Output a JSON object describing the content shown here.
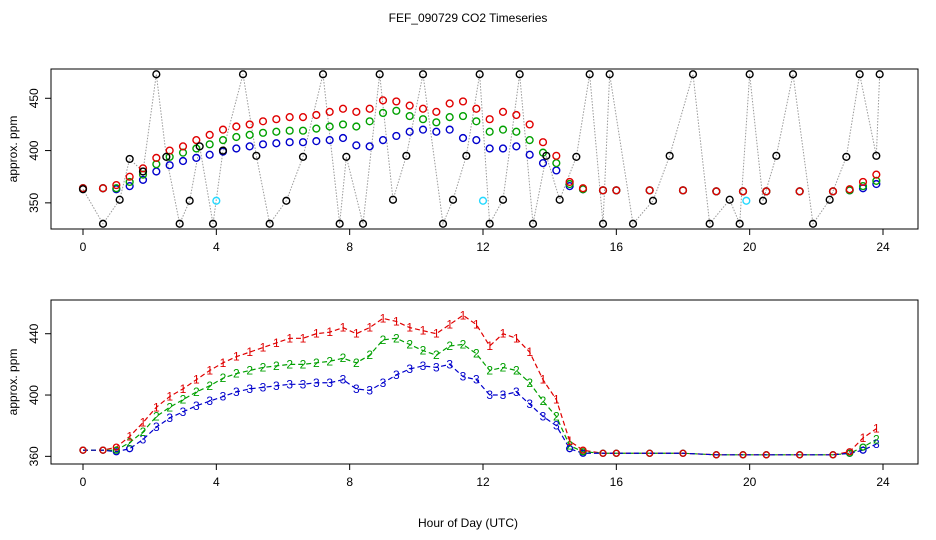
{
  "title": "FEF_090729  CO2 Timeseries",
  "xlabel": "Hour of Day (UTC)",
  "colors": {
    "black": "#000000",
    "red": "#e00000",
    "green": "#00a000",
    "blue": "#0000cc",
    "cyan": "#22d8ff",
    "grey": "#9a9a9a"
  },
  "chart_data": [
    {
      "type": "scatter",
      "title": "FEF_090729  CO2 Timeseries",
      "xlabel": "",
      "ylabel": "approx. ppm",
      "xlim": [
        0,
        24
      ],
      "ylim": [
        325,
        478
      ],
      "xticks": [
        "0",
        "4",
        "8",
        "12",
        "16",
        "20",
        "24"
      ],
      "yticks": [
        "350",
        "400",
        "450"
      ],
      "series": [
        {
          "color": "black",
          "marker": "circle",
          "x": [
            0.0,
            0.6,
            1.1,
            1.4,
            1.8,
            2.2,
            2.5,
            2.9,
            3.2,
            3.5,
            3.9,
            4.2,
            4.8,
            5.2,
            5.6,
            6.1,
            6.6,
            7.2,
            7.7,
            7.9,
            8.4,
            8.9,
            9.3,
            9.7,
            10.2,
            10.8,
            11.1,
            11.5,
            11.9,
            12.2,
            12.6,
            13.1,
            13.5,
            13.9,
            14.3,
            14.8,
            15.2,
            15.6,
            15.8,
            16.5,
            17.1,
            17.6,
            18.3,
            18.8,
            19.4,
            19.7,
            20.0,
            20.4,
            20.8,
            21.3,
            21.9,
            22.4,
            22.9,
            23.3,
            23.8,
            23.9
          ],
          "y": [
            363,
            330,
            353,
            392,
            380,
            473,
            394,
            330,
            352,
            404,
            330,
            400,
            473,
            395,
            330,
            352,
            394,
            473,
            330,
            394,
            330,
            473,
            353,
            395,
            473,
            330,
            353,
            395,
            473,
            330,
            353,
            473,
            330,
            395,
            353,
            394,
            473,
            330,
            473,
            330,
            352,
            395,
            473,
            330,
            353,
            330,
            473,
            352,
            395,
            473,
            330,
            353,
            394,
            473,
            395,
            473
          ]
        },
        {
          "color": "red",
          "marker": "circle",
          "x": [
            0.0,
            0.6,
            1.0,
            1.4,
            1.8,
            2.2,
            2.6,
            3.0,
            3.4,
            3.8,
            4.2,
            4.6,
            5.0,
            5.4,
            5.8,
            6.2,
            6.6,
            7.0,
            7.4,
            7.8,
            8.2,
            8.6,
            9.0,
            9.4,
            9.8,
            10.2,
            10.6,
            11.0,
            11.4,
            11.8,
            12.2,
            12.6,
            13.0,
            13.4,
            13.8,
            14.2,
            14.6,
            15.0,
            15.6,
            16.0,
            17.0,
            18.0,
            19.0,
            19.8,
            20.5,
            21.5,
            22.5,
            23.0,
            23.4,
            23.8
          ],
          "y": [
            364,
            364,
            367,
            375,
            383,
            393,
            400,
            404,
            410,
            415,
            420,
            423,
            425,
            428,
            430,
            432,
            432,
            434,
            437,
            440,
            437,
            440,
            448,
            447,
            443,
            440,
            437,
            445,
            447,
            440,
            430,
            437,
            434,
            425,
            408,
            395,
            370,
            364,
            362,
            362,
            362,
            362,
            361,
            361,
            361,
            361,
            361,
            363,
            370,
            377
          ]
        },
        {
          "color": "green",
          "marker": "circle",
          "x": [
            0.0,
            0.6,
            1.0,
            1.4,
            1.8,
            2.2,
            2.6,
            3.0,
            3.4,
            3.8,
            4.2,
            4.6,
            5.0,
            5.4,
            5.8,
            6.2,
            6.6,
            7.0,
            7.4,
            7.8,
            8.2,
            8.6,
            9.0,
            9.4,
            9.8,
            10.2,
            10.6,
            11.0,
            11.4,
            11.8,
            12.2,
            12.6,
            13.0,
            13.4,
            13.8,
            14.2,
            14.6,
            15.0,
            15.6,
            16.0,
            17.0,
            18.0,
            19.0,
            19.8,
            20.5,
            21.5,
            22.5,
            23.0,
            23.4,
            23.8
          ],
          "y": [
            364,
            364,
            364,
            370,
            377,
            387,
            394,
            398,
            402,
            406,
            410,
            413,
            415,
            417,
            418,
            419,
            419,
            421,
            423,
            425,
            423,
            428,
            436,
            438,
            433,
            430,
            427,
            432,
            433,
            428,
            418,
            420,
            418,
            410,
            398,
            388,
            368,
            363,
            362,
            362,
            362,
            362,
            361,
            361,
            361,
            361,
            361,
            362,
            366,
            371
          ]
        },
        {
          "color": "blue",
          "marker": "circle",
          "x": [
            0.0,
            0.6,
            1.0,
            1.4,
            1.8,
            2.2,
            2.6,
            3.0,
            3.4,
            3.8,
            4.2,
            4.6,
            5.0,
            5.4,
            5.8,
            6.2,
            6.6,
            7.0,
            7.4,
            7.8,
            8.2,
            8.6,
            9.0,
            9.4,
            9.8,
            10.2,
            10.6,
            11.0,
            11.4,
            11.8,
            12.2,
            12.6,
            13.0,
            13.4,
            13.8,
            14.2,
            14.6,
            15.0,
            15.6,
            16.0,
            17.0,
            18.0,
            19.0,
            19.8,
            20.5,
            21.5,
            22.5,
            23.0,
            23.4,
            23.8
          ],
          "y": [
            364,
            364,
            363,
            366,
            372,
            380,
            386,
            390,
            393,
            396,
            399,
            402,
            404,
            406,
            407,
            408,
            408,
            409,
            410,
            412,
            405,
            404,
            410,
            414,
            418,
            420,
            418,
            420,
            412,
            410,
            402,
            402,
            404,
            396,
            388,
            381,
            366,
            363,
            362,
            362,
            362,
            362,
            361,
            361,
            361,
            361,
            361,
            362,
            364,
            368
          ]
        },
        {
          "color": "cyan",
          "marker": "circle",
          "x": [
            4.0,
            12.0,
            19.9
          ],
          "y": [
            352,
            352,
            352
          ]
        }
      ]
    },
    {
      "type": "line",
      "title": "",
      "xlabel": "Hour of Day (UTC)",
      "ylabel": "approx. ppm",
      "xlim": [
        0,
        24
      ],
      "ylim": [
        355,
        462
      ],
      "xticks": [
        "0",
        "4",
        "8",
        "12",
        "16",
        "20",
        "24"
      ],
      "yticks": [
        "360",
        "400",
        "440"
      ],
      "series": [
        {
          "color": "red",
          "marker": "1",
          "x": [
            0.0,
            0.6,
            1.0,
            1.4,
            1.8,
            2.2,
            2.6,
            3.0,
            3.4,
            3.8,
            4.2,
            4.6,
            5.0,
            5.4,
            5.8,
            6.2,
            6.6,
            7.0,
            7.4,
            7.8,
            8.2,
            8.6,
            9.0,
            9.4,
            9.8,
            10.2,
            10.6,
            11.0,
            11.4,
            11.8,
            12.2,
            12.6,
            13.0,
            13.4,
            13.8,
            14.2,
            14.6,
            15.0,
            15.6,
            16.0,
            17.0,
            18.0,
            19.0,
            19.8,
            20.5,
            21.5,
            22.5,
            23.0,
            23.4,
            23.8
          ],
          "y": [
            364,
            364,
            366,
            373,
            382,
            392,
            399,
            404,
            410,
            416,
            421,
            425,
            428,
            431,
            434,
            437,
            437,
            440,
            441,
            444,
            440,
            444,
            450,
            448,
            444,
            442,
            440,
            446,
            452,
            446,
            432,
            440,
            437,
            428,
            410,
            397,
            370,
            364,
            362,
            362,
            362,
            362,
            361,
            361,
            361,
            361,
            361,
            363,
            372,
            378
          ]
        },
        {
          "color": "green",
          "marker": "2",
          "x": [
            0.0,
            0.6,
            1.0,
            1.4,
            1.8,
            2.2,
            2.6,
            3.0,
            3.4,
            3.8,
            4.2,
            4.6,
            5.0,
            5.4,
            5.8,
            6.2,
            6.6,
            7.0,
            7.4,
            7.8,
            8.2,
            8.6,
            9.0,
            9.4,
            9.8,
            10.2,
            10.6,
            11.0,
            11.4,
            11.8,
            12.2,
            12.6,
            13.0,
            13.4,
            13.8,
            14.2,
            14.6,
            15.0,
            15.6,
            16.0,
            17.0,
            18.0,
            19.0,
            19.8,
            20.5,
            21.5,
            22.5,
            23.0,
            23.4,
            23.8
          ],
          "y": [
            364,
            364,
            364,
            369,
            376,
            386,
            392,
            397,
            402,
            406,
            411,
            414,
            416,
            418,
            419,
            420,
            420,
            421,
            422,
            424,
            421,
            426,
            436,
            437,
            433,
            429,
            426,
            432,
            433,
            427,
            416,
            418,
            416,
            408,
            396,
            386,
            367,
            363,
            362,
            362,
            362,
            362,
            361,
            361,
            361,
            361,
            361,
            362,
            366,
            371
          ]
        },
        {
          "color": "blue",
          "marker": "3",
          "x": [
            0.0,
            0.6,
            1.0,
            1.4,
            1.8,
            2.2,
            2.6,
            3.0,
            3.4,
            3.8,
            4.2,
            4.6,
            5.0,
            5.4,
            5.8,
            6.2,
            6.6,
            7.0,
            7.4,
            7.8,
            8.2,
            8.6,
            9.0,
            9.4,
            9.8,
            10.2,
            10.6,
            11.0,
            11.4,
            11.8,
            12.2,
            12.6,
            13.0,
            13.4,
            13.8,
            14.2,
            14.6,
            15.0,
            15.6,
            16.0,
            17.0,
            18.0,
            19.0,
            19.8,
            20.5,
            21.5,
            22.5,
            23.0,
            23.4,
            23.8
          ],
          "y": [
            364,
            364,
            363,
            365,
            371,
            379,
            385,
            389,
            393,
            396,
            399,
            402,
            404,
            405,
            406,
            407,
            407,
            408,
            408,
            410,
            404,
            403,
            408,
            413,
            417,
            419,
            418,
            420,
            412,
            410,
            400,
            400,
            402,
            394,
            386,
            380,
            365,
            362,
            362,
            362,
            362,
            362,
            361,
            361,
            361,
            361,
            361,
            362,
            364,
            368
          ]
        }
      ]
    }
  ]
}
